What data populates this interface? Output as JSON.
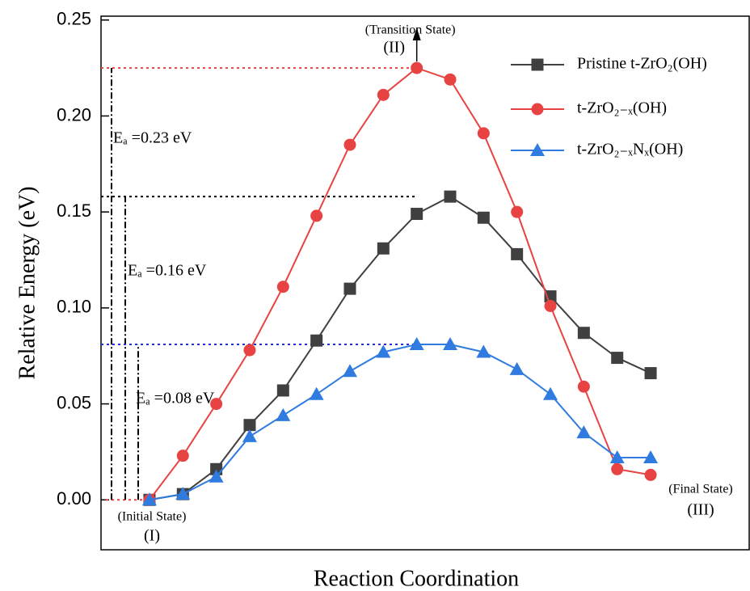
{
  "chart_data": {
    "type": "line",
    "y_label": "Relative Energy (eV)",
    "x_label": "Reaction Coordination",
    "x": [
      0,
      1,
      2,
      3,
      4,
      5,
      6,
      7,
      8,
      9,
      10,
      11,
      12,
      13,
      14,
      15
    ],
    "xlim": [
      -1.45,
      17.95
    ],
    "ylim": [
      -0.026,
      0.252
    ],
    "yticks": [
      {
        "value": 0,
        "label": "0.00"
      },
      {
        "value": 0.05,
        "label": "0.05"
      },
      {
        "value": 0.1,
        "label": "0.10"
      },
      {
        "value": 0.15,
        "label": "0.15"
      },
      {
        "value": 0.2,
        "label": "0.20"
      },
      {
        "value": 0.25,
        "label": "0.25"
      }
    ],
    "series": [
      {
        "name": "Pristine t-ZrO₂(OH)",
        "color": "#404040",
        "marker": "square",
        "values": [
          0,
          0.003,
          0.016,
          0.039,
          0.057,
          0.083,
          0.11,
          0.131,
          0.149,
          0.158,
          0.147,
          0.128,
          0.106,
          0.087,
          0.074,
          0.066
        ]
      },
      {
        "name": "t-ZrO₂₋ₓ(OH)",
        "color": "#e84343",
        "marker": "circle",
        "values": [
          0,
          0.023,
          0.05,
          0.078,
          0.111,
          0.148,
          0.185,
          0.211,
          0.225,
          0.219,
          0.191,
          0.15,
          0.101,
          0.059,
          0.016,
          0.013
        ]
      },
      {
        "name": "t-ZrO₂₋ₓNₓ(OH)",
        "color": "#2f7be0",
        "marker": "triangle",
        "values": [
          0,
          0.003,
          0.012,
          0.033,
          0.044,
          0.055,
          0.067,
          0.077,
          0.081,
          0.081,
          0.077,
          0.068,
          0.055,
          0.035,
          0.022,
          0.022
        ]
      }
    ],
    "barriers": [
      {
        "label": "Eₐ =0.23 eV",
        "value": 0.225,
        "color": "#e84343"
      },
      {
        "label": "Eₐ =0.16 eV",
        "value": 0.158,
        "color": "#000000"
      },
      {
        "label": "Eₐ =0.08 eV",
        "value": 0.081,
        "color": "#1f2fd0"
      }
    ],
    "annotations": {
      "transition": [
        "(Transition State)",
        "(II)"
      ],
      "initial": [
        "(Initial State)",
        "(I)"
      ],
      "final": [
        "(Final State)",
        "(III)"
      ]
    }
  }
}
